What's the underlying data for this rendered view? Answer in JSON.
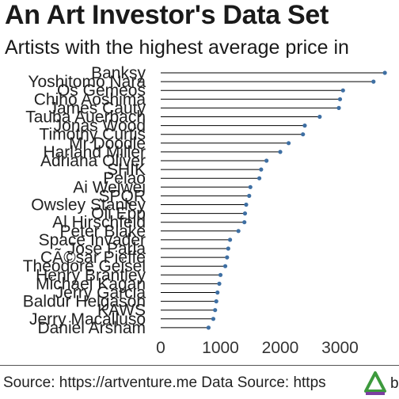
{
  "title": "An Art Investor's Data Set",
  "subtitle": "Artists with the highest average price in",
  "caption": "Source: https://artventure.me Data Source: https",
  "caption_tail": "b",
  "logo_icon": "triangle-logo-icon",
  "colors": {
    "stem": "#000000",
    "dot": "#3e6fa3",
    "logo_green": "#3d9a3d",
    "logo_purple": "#7b3fa0"
  },
  "chart_data": {
    "type": "lollipop",
    "orientation": "horizontal",
    "grid": false,
    "xlim": [
      0,
      3800
    ],
    "x_ticks": [
      "0",
      "1000",
      "2000",
      "3000"
    ],
    "x_tick_values": [
      0,
      1000,
      2000,
      3000
    ],
    "categories": [
      "Banksy",
      "Yoshitomo Nara",
      "Os Gemeos",
      "Chiho Aoshima",
      "James Cauty",
      "Tauba Auerbach",
      "Jonas Wood",
      "Timothy Curtis",
      "Mr Doodle",
      "Harland Miller",
      "Adriana Oliver",
      "SHIK",
      "Pelao",
      "Ai Weiwei",
      "SPQR",
      "Owsley Stanley",
      "Oli Epp",
      "Al Hirschfeld",
      "Peter Blake",
      "Space Invader",
      "Jose Parla",
      "César Pieffe",
      "Theodore Geisel",
      "Henry Brantley",
      "Michael Kagan",
      "Jerry Garcia",
      "Baldur Helgason",
      "KAWS",
      "Jerry Macalluso",
      "Daniel Arsham"
    ],
    "category_labels": [
      "Banksy",
      "Yoshitomo Nara",
      "Os Gemeos",
      "Chiho Aoshima",
      "James Cauty",
      "Tauba Auerbach",
      "Jonas Wood",
      "Timothy Curtis",
      "Mr Doodle",
      "Harland Miller",
      "Adriana Oliver",
      "SHIK",
      "Pelao",
      "Ai Weiwei",
      "SPQR",
      "Owsley Stanley",
      "Oli Epp",
      "Al Hirschfeld",
      "Peter Blake",
      "Space Invader",
      "Jose Parla",
      "CÃ©sar Pieffe",
      "Theodore Geisel",
      "Henry Brantley",
      "Michael Kagan",
      "Jerry Garcia",
      "Baldur Helgason",
      "KAWS",
      "Jerry Macalluso",
      "Daniel Arsham"
    ],
    "values": [
      3750,
      3560,
      3050,
      3000,
      2980,
      2660,
      2410,
      2380,
      2140,
      2000,
      1770,
      1680,
      1650,
      1500,
      1480,
      1430,
      1410,
      1400,
      1300,
      1160,
      1130,
      1110,
      1080,
      1000,
      980,
      950,
      930,
      910,
      880,
      800
    ]
  }
}
